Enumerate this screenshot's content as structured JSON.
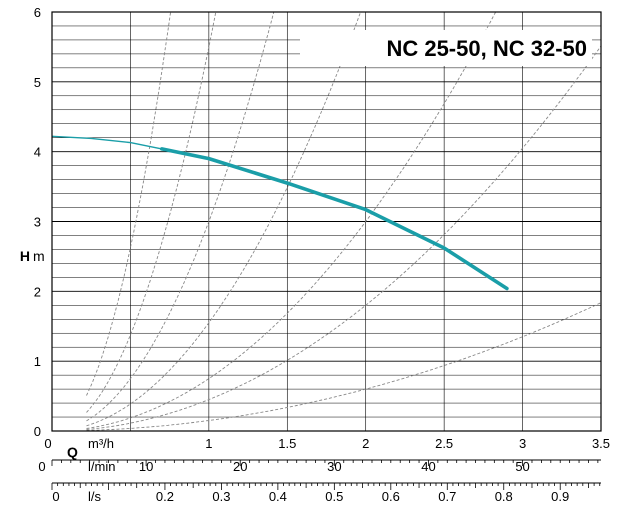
{
  "chart_data": {
    "type": "line",
    "title": "NC 25-50,  NC 32-50",
    "ylabel_bold": "H",
    "ylabel_unit": "m",
    "xlabel_q": "Q",
    "unit_m3h": "m³/h",
    "unit_lmin": "l/min",
    "unit_ls": "l/s",
    "xlim": [
      0,
      3.5
    ],
    "ylim": [
      0,
      6
    ],
    "grid": true,
    "y_ticks": [
      0,
      1,
      2,
      3,
      4,
      5,
      6
    ],
    "y_minor_step": 0.2,
    "x_ticks_m3h": [
      1,
      1.5,
      2,
      2.5,
      3,
      3.5
    ],
    "x_tick_m3h_origin": "0",
    "x_ticks_lmin": [
      0,
      10,
      20,
      30,
      40,
      50
    ],
    "x_ticks_ls": [
      0,
      0.2,
      0.3,
      0.4,
      0.5,
      0.6,
      0.7,
      0.8,
      0.9
    ],
    "series": [
      {
        "color": "#1a9ea8",
        "thin_x": [
          0,
          0.25,
          0.5,
          0.7
        ],
        "thin_y": [
          4.22,
          4.19,
          4.13,
          4.04
        ],
        "x": [
          0.7,
          1.0,
          1.5,
          2.0,
          2.5,
          2.9
        ],
        "y": [
          4.04,
          3.9,
          3.55,
          3.17,
          2.62,
          2.04
        ]
      }
    ],
    "system_curve_color": "#888888",
    "system_curve_k": [
      10.5,
      5.5,
      3.0,
      1.55,
      0.75,
      0.45,
      0.15
    ]
  }
}
